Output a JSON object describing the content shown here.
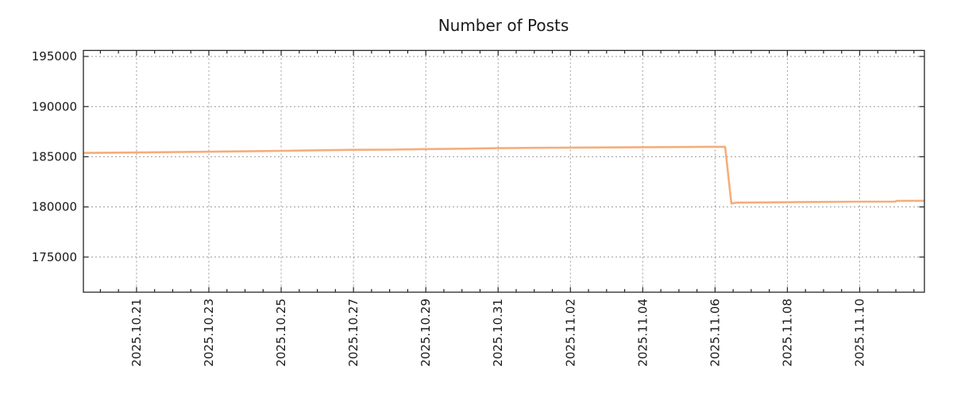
{
  "window": {
    "background": "#ffffff"
  },
  "colors": {
    "line": "#f6ad7b",
    "grid": "#999999",
    "border": "#262626",
    "text": "#1a1a1a",
    "background": "#ffffff"
  },
  "chart_data": {
    "type": "line",
    "title": "Number of Posts",
    "xlabel": "",
    "ylabel": "",
    "grid": true,
    "legend": false,
    "x_unit": "days since 2025-10-19 00:00",
    "xlim": [
      0.53,
      23.79
    ],
    "ylim": [
      171500,
      195600
    ],
    "x_minor_step": 0.5,
    "x_major_ticks": [
      {
        "t": 2,
        "label": "2025.10.21"
      },
      {
        "t": 4,
        "label": "2025.10.23"
      },
      {
        "t": 6,
        "label": "2025.10.25"
      },
      {
        "t": 8,
        "label": "2025.10.27"
      },
      {
        "t": 10,
        "label": "2025.10.29"
      },
      {
        "t": 12,
        "label": "2025.10.31"
      },
      {
        "t": 14,
        "label": "2025.11.02"
      },
      {
        "t": 16,
        "label": "2025.11.04"
      },
      {
        "t": 18,
        "label": "2025.11.06"
      },
      {
        "t": 20,
        "label": "2025.11.08"
      },
      {
        "t": 22,
        "label": "2025.11.10"
      }
    ],
    "y_major_ticks": [
      {
        "v": 175000,
        "label": "175000"
      },
      {
        "v": 180000,
        "label": "180000"
      },
      {
        "v": 185000,
        "label": "185000"
      },
      {
        "v": 190000,
        "label": "190000"
      },
      {
        "v": 195000,
        "label": "195000"
      }
    ],
    "series": [
      {
        "name": "Number of Posts",
        "color": "#f6ad7b",
        "points": [
          [
            0.53,
            185380
          ],
          [
            1,
            185400
          ],
          [
            2,
            185420
          ],
          [
            3,
            185460
          ],
          [
            4,
            185500
          ],
          [
            5,
            185540
          ],
          [
            6,
            185590
          ],
          [
            7,
            185640
          ],
          [
            8,
            185690
          ],
          [
            9,
            185710
          ],
          [
            10,
            185760
          ],
          [
            11,
            185800
          ],
          [
            12,
            185860
          ],
          [
            13,
            185890
          ],
          [
            14,
            185910
          ],
          [
            15,
            185930
          ],
          [
            16,
            185950
          ],
          [
            17,
            185970
          ],
          [
            18,
            185990
          ],
          [
            18.28,
            185990
          ],
          [
            18.45,
            180340
          ],
          [
            18.6,
            180430
          ],
          [
            19.5,
            180450
          ],
          [
            20,
            180470
          ],
          [
            21,
            180500
          ],
          [
            22,
            180520
          ],
          [
            22.98,
            180530
          ],
          [
            23.02,
            180600
          ],
          [
            23.79,
            180610
          ]
        ]
      }
    ]
  }
}
